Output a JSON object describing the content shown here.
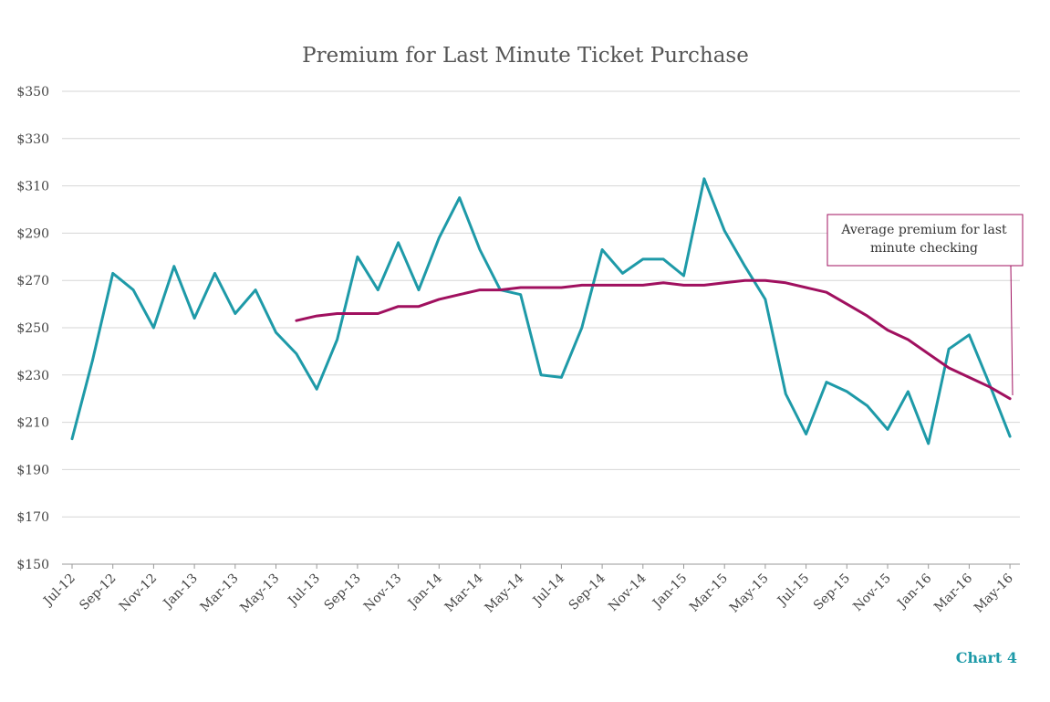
{
  "chart_label": "Chart 4",
  "colors": {
    "monthly": "#1e9aa8",
    "average": "#a0105f",
    "annotation_border": "#a0105f"
  },
  "chart_data": {
    "type": "line",
    "title": "Premium for Last Minute Ticket Purchase",
    "xlabel": "",
    "ylabel": "",
    "ylim": [
      150,
      350
    ],
    "y_ticks": [
      150,
      170,
      190,
      210,
      230,
      250,
      270,
      290,
      310,
      330,
      350
    ],
    "y_tick_format": "$",
    "grid": true,
    "x": [
      "Jul-12",
      "Aug-12",
      "Sep-12",
      "Oct-12",
      "Nov-12",
      "Dec-12",
      "Jan-13",
      "Feb-13",
      "Mar-13",
      "Apr-13",
      "May-13",
      "Jun-13",
      "Jul-13",
      "Aug-13",
      "Sep-13",
      "Oct-13",
      "Nov-13",
      "Dec-13",
      "Jan-14",
      "Feb-14",
      "Mar-14",
      "Apr-14",
      "May-14",
      "Jun-14",
      "Jul-14",
      "Aug-14",
      "Sep-14",
      "Oct-14",
      "Nov-14",
      "Dec-14",
      "Jan-15",
      "Feb-15",
      "Mar-15",
      "Apr-15",
      "May-15",
      "Jun-15",
      "Jul-15",
      "Aug-15",
      "Sep-15",
      "Oct-15",
      "Nov-15",
      "Dec-15",
      "Jan-16",
      "Feb-16",
      "Mar-16",
      "Apr-16",
      "May-16"
    ],
    "x_tick_labels": [
      "Jul-12",
      "Sep-12",
      "Nov-12",
      "Jan-13",
      "Mar-13",
      "May-13",
      "Jul-13",
      "Sep-13",
      "Nov-13",
      "Jan-14",
      "Mar-14",
      "May-14",
      "Jul-14",
      "Sep-14",
      "Nov-14",
      "Jan-15",
      "Mar-15",
      "May-15",
      "Jul-15",
      "Sep-15",
      "Nov-15",
      "Jan-16",
      "Mar-16",
      "May-16"
    ],
    "series": [
      {
        "values": [
          203,
          236,
          273,
          266,
          250,
          276,
          254,
          273,
          256,
          266,
          248,
          239,
          224,
          245,
          280,
          266,
          286,
          266,
          288,
          305,
          283,
          266,
          264,
          230,
          229,
          250,
          283,
          273,
          279,
          279,
          272,
          313,
          291,
          276,
          262,
          222,
          205,
          227,
          223,
          217,
          207,
          223,
          201,
          241,
          247,
          226,
          204
        ]
      },
      {
        "values": [
          null,
          null,
          null,
          null,
          null,
          null,
          null,
          null,
          null,
          null,
          null,
          253,
          255,
          256,
          256,
          256,
          259,
          259,
          262,
          264,
          266,
          266,
          267,
          267,
          267,
          268,
          268,
          268,
          268,
          269,
          268,
          268,
          269,
          270,
          270,
          269,
          267,
          265,
          260,
          255,
          249,
          245,
          239,
          233,
          229,
          225,
          220
        ]
      }
    ],
    "annotation": {
      "text_line1": "Average premium for last",
      "text_line2": "minute checking"
    }
  }
}
